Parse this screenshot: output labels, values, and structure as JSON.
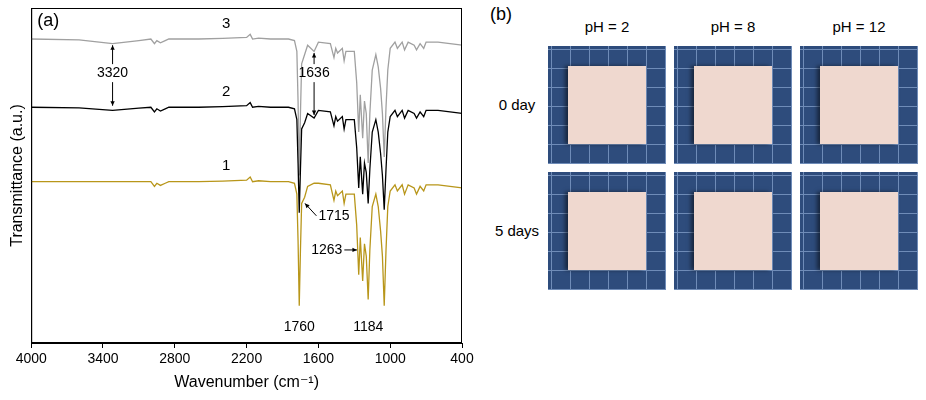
{
  "chart_data": {
    "type": "line",
    "panel_label": "(a)",
    "x_label": "Wavenumber (cm⁻¹)",
    "y_label": "Transmittance (a.u.)",
    "x": [
      4000,
      3600,
      3320,
      3100,
      3000,
      2970,
      2950,
      2920,
      2880,
      2850,
      2600,
      2400,
      2200,
      2170,
      2150,
      2100,
      2000,
      1850,
      1800,
      1780,
      1770,
      1760,
      1750,
      1740,
      1715,
      1690,
      1636,
      1600,
      1500,
      1470,
      1455,
      1440,
      1400,
      1385,
      1370,
      1300,
      1280,
      1263,
      1250,
      1230,
      1215,
      1200,
      1184,
      1170,
      1150,
      1120,
      1100,
      1080,
      1065,
      1050,
      1035,
      1020,
      1000,
      960,
      940,
      900,
      880,
      850,
      800,
      780,
      750,
      720,
      700,
      600,
      500,
      400
    ],
    "series": [
      {
        "name": "1",
        "color": "#b8961a",
        "label_x": 2370,
        "label_y": 49,
        "values": [
          44,
          44,
          44,
          44,
          44,
          42.5,
          43.5,
          42.8,
          43.5,
          44,
          44,
          44.2,
          44.5,
          45.5,
          44,
          44.3,
          44,
          44,
          43.5,
          40,
          25,
          4,
          22,
          37,
          39,
          42.5,
          43.5,
          43.5,
          43,
          38,
          41,
          39.5,
          41,
          37,
          40,
          40,
          30,
          14,
          26,
          12,
          24,
          20,
          6,
          22,
          36,
          40,
          36,
          28,
          20,
          4,
          22,
          36,
          41,
          43,
          41,
          43,
          40,
          43,
          42,
          40,
          42.5,
          41,
          43,
          43,
          42.5,
          42
        ]
      },
      {
        "name": "2",
        "color": "#000000",
        "label_x": 2370,
        "label_y": 73,
        "values": [
          68,
          67.8,
          67,
          67.7,
          68,
          66.5,
          67.5,
          66.8,
          67.5,
          68,
          68,
          68.2,
          68.5,
          69.5,
          68,
          68.3,
          68,
          68,
          67.5,
          64,
          50,
          34,
          48,
          61,
          63,
          66,
          64.5,
          67,
          66.5,
          62,
          65,
          63.5,
          65,
          61,
          64,
          64,
          55,
          42,
          52,
          40,
          50,
          47,
          37,
          48,
          60,
          64,
          60,
          53,
          46,
          35,
          48,
          60,
          65,
          67,
          65,
          67,
          64.5,
          67,
          66,
          64.5,
          66.5,
          65,
          67,
          67,
          66.5,
          66
        ]
      },
      {
        "name": "3",
        "color": "#a0a0a0",
        "label_x": 2370,
        "label_y": 95,
        "values": [
          90,
          89.7,
          88.5,
          89.5,
          90,
          88.5,
          89.5,
          88.8,
          89.5,
          90,
          90,
          90.2,
          90.5,
          91.5,
          90,
          90.3,
          90,
          90,
          89.5,
          86,
          70,
          46,
          66,
          82,
          85,
          88,
          86,
          89,
          88.5,
          84,
          87,
          85.5,
          87,
          83,
          86,
          86,
          76,
          60,
          72,
          58,
          70,
          66,
          50,
          66,
          80,
          85,
          81,
          74,
          66,
          52,
          68,
          80,
          87,
          89,
          87,
          89,
          86.5,
          89,
          88,
          86.5,
          88.5,
          87,
          89,
          89,
          88.5,
          88
        ]
      }
    ],
    "xlim": [
      4000,
      400
    ],
    "xticks": [
      4000,
      3400,
      2800,
      2200,
      1600,
      1000,
      400
    ],
    "ylim": [
      -8,
      100
    ],
    "yticks": [],
    "tick_labels": "x",
    "grid": false,
    "annotations": [
      {
        "text": "3320",
        "x": 3320,
        "y": 79,
        "arrow_to": [
          [
            3320,
            88
          ],
          [
            3320,
            68.5
          ]
        ]
      },
      {
        "text": "1636",
        "x": 1636,
        "y": 79,
        "arrow_to": [
          [
            1636,
            85.5
          ],
          [
            1636,
            65.5
          ]
        ]
      },
      {
        "text": "1715",
        "x": 1600,
        "y": 33,
        "arrow_to": [
          [
            1712,
            37
          ]
        ]
      },
      {
        "text": "1263",
        "x": 1400,
        "y": 22,
        "arrow_to": [
          [
            1278,
            22
          ]
        ]
      },
      {
        "text": "1760",
        "x": 1760,
        "y": -3
      },
      {
        "text": "1184",
        "x": 1184,
        "y": -3
      }
    ]
  },
  "photos": {
    "panel_label": "(b)",
    "columns": [
      "pH = 2",
      "pH = 8",
      "pH = 12"
    ],
    "rows": [
      "0 day",
      "5 days"
    ]
  }
}
